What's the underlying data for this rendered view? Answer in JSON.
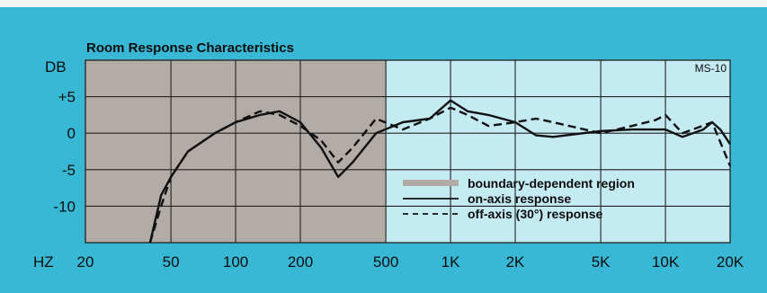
{
  "chart_data": {
    "type": "line",
    "title": "Room Response Characteristics",
    "ylabel": "DB",
    "xlabel": "HZ",
    "model_label": "MS-10",
    "x_scale": "log",
    "xlim": [
      20,
      20000
    ],
    "ylim": [
      -15,
      10
    ],
    "x_ticks": [
      {
        "value": 20,
        "label": "20"
      },
      {
        "value": 50,
        "label": "50"
      },
      {
        "value": 100,
        "label": "100"
      },
      {
        "value": 200,
        "label": "200"
      },
      {
        "value": 500,
        "label": "500"
      },
      {
        "value": 1000,
        "label": "1K"
      },
      {
        "value": 2000,
        "label": "2K"
      },
      {
        "value": 5000,
        "label": "5K"
      },
      {
        "value": 10000,
        "label": "10K"
      },
      {
        "value": 20000,
        "label": "20K"
      }
    ],
    "y_ticks": [
      {
        "value": 5,
        "label": "+5"
      },
      {
        "value": 0,
        "label": "0"
      },
      {
        "value": -5,
        "label": "-5"
      },
      {
        "value": -10,
        "label": "-10"
      }
    ],
    "regions": [
      {
        "name": "boundary-dependent region",
        "x_range": [
          20,
          500
        ],
        "color": "#b3aba6"
      }
    ],
    "region_after_color": "#c4eaf2",
    "series": [
      {
        "name": "on-axis response",
        "style": "solid",
        "points": [
          [
            40,
            -15
          ],
          [
            45,
            -8.5
          ],
          [
            50,
            -6
          ],
          [
            60,
            -2.5
          ],
          [
            80,
            0
          ],
          [
            100,
            1.5
          ],
          [
            130,
            2.5
          ],
          [
            160,
            3
          ],
          [
            200,
            1.5
          ],
          [
            250,
            -2
          ],
          [
            300,
            -6
          ],
          [
            350,
            -4
          ],
          [
            450,
            0
          ],
          [
            600,
            1.5
          ],
          [
            800,
            2
          ],
          [
            1000,
            4.5
          ],
          [
            1200,
            3
          ],
          [
            1500,
            2.5
          ],
          [
            2000,
            1.5
          ],
          [
            2500,
            -0.3
          ],
          [
            3000,
            -0.5
          ],
          [
            5000,
            0.3
          ],
          [
            7000,
            0.5
          ],
          [
            10000,
            0.5
          ],
          [
            12000,
            -0.5
          ],
          [
            15000,
            0.5
          ],
          [
            16500,
            1.5
          ],
          [
            18000,
            0.5
          ],
          [
            20000,
            -1.5
          ]
        ]
      },
      {
        "name": "off-axis (30°) response",
        "style": "dashed",
        "points": [
          [
            40,
            -15
          ],
          [
            45,
            -10
          ],
          [
            50,
            -6
          ],
          [
            60,
            -2.5
          ],
          [
            80,
            0
          ],
          [
            100,
            1.5
          ],
          [
            130,
            3
          ],
          [
            160,
            2.5
          ],
          [
            200,
            1
          ],
          [
            250,
            -1
          ],
          [
            300,
            -4
          ],
          [
            350,
            -2
          ],
          [
            450,
            2
          ],
          [
            600,
            0.5
          ],
          [
            800,
            2
          ],
          [
            1000,
            3.5
          ],
          [
            1200,
            2.5
          ],
          [
            1500,
            1
          ],
          [
            2000,
            1.5
          ],
          [
            2500,
            2
          ],
          [
            3000,
            1.5
          ],
          [
            5000,
            0
          ],
          [
            7000,
            1
          ],
          [
            9000,
            1.8
          ],
          [
            10000,
            2.5
          ],
          [
            12000,
            0
          ],
          [
            16500,
            1.5
          ],
          [
            20000,
            -4.5
          ]
        ]
      }
    ],
    "legend": [
      {
        "label": "boundary-dependent region",
        "swatch": "region"
      },
      {
        "label": "on-axis response",
        "swatch": "solid"
      },
      {
        "label": "off-axis (30°) response",
        "swatch": "dashed"
      }
    ],
    "legend_position": "bottom-right"
  }
}
